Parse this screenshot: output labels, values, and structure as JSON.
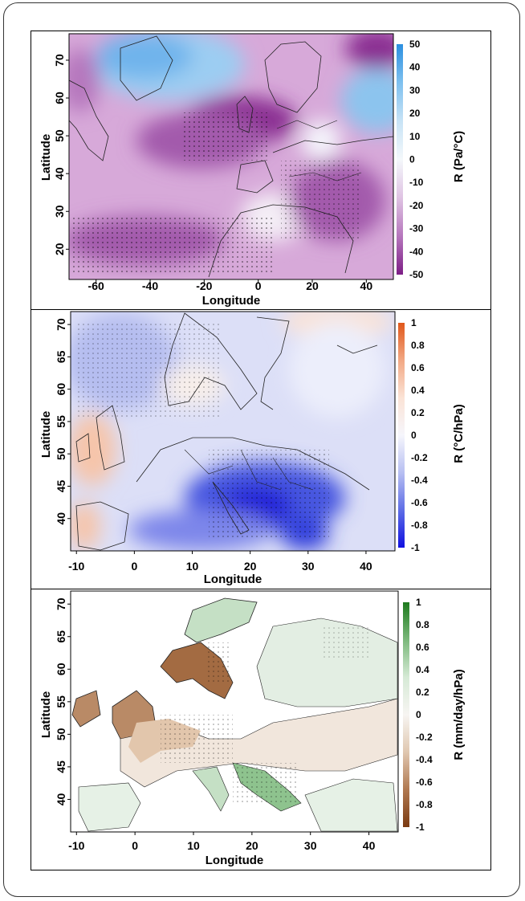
{
  "panels": [
    {
      "id": "panel-1",
      "xlabel": "Longitude",
      "ylabel": "Latitude",
      "xticks": [
        -60,
        -40,
        -20,
        0,
        20,
        40
      ],
      "yticks": [
        20,
        30,
        40,
        50,
        60,
        70
      ],
      "xlim": [
        -70,
        50
      ],
      "ylim": [
        12,
        77
      ],
      "colorbar_label": "R (Pa/°C)",
      "colorbar_ticks": [
        "50",
        "40",
        "30",
        "20",
        "10",
        "0",
        "-10",
        "-20",
        "-30",
        "-40",
        "-50"
      ],
      "colorbar_colors": [
        "#2b8fe0",
        "#7ec0ef",
        "#c7e3f6",
        "#f4f8fb",
        "#dfc3e3",
        "#b677bd",
        "#7d1e86"
      ]
    },
    {
      "id": "panel-2",
      "xlabel": "Longitude",
      "ylabel": "Latitude",
      "xticks": [
        -10,
        0,
        10,
        20,
        30,
        40
      ],
      "yticks": [
        40,
        45,
        50,
        55,
        60,
        65,
        70
      ],
      "xlim": [
        -11,
        45
      ],
      "ylim": [
        35,
        72
      ],
      "colorbar_label": "R (°C/hPa)",
      "colorbar_ticks": [
        "1",
        "0.8",
        "0.6",
        "0.4",
        "0.2",
        "0",
        "-0.2",
        "-0.4",
        "-0.6",
        "-0.8",
        "-1"
      ],
      "colorbar_colors": [
        "#e0571a",
        "#f2a884",
        "#fbe3d6",
        "#f6f6fc",
        "#b7bff2",
        "#5e6de6",
        "#1010e0"
      ]
    },
    {
      "id": "panel-3",
      "xlabel": "Longitude",
      "ylabel": "Latitude",
      "xticks": [
        -10,
        0,
        10,
        20,
        30,
        40
      ],
      "yticks": [
        40,
        45,
        50,
        55,
        60,
        65,
        70
      ],
      "xlim": [
        -11,
        45
      ],
      "ylim": [
        35,
        72
      ],
      "colorbar_label": "R (mm/day/hPa)",
      "colorbar_ticks": [
        "1",
        "0.8",
        "0.6",
        "0.4",
        "0.2",
        "0",
        "-0.2",
        "-0.4",
        "-0.6",
        "-0.8",
        "-1"
      ],
      "colorbar_colors": [
        "#1e7a1e",
        "#7ab87a",
        "#d6ead6",
        "#f7f5f2",
        "#e0c7b0",
        "#b07850",
        "#7b3b12"
      ]
    }
  ]
}
